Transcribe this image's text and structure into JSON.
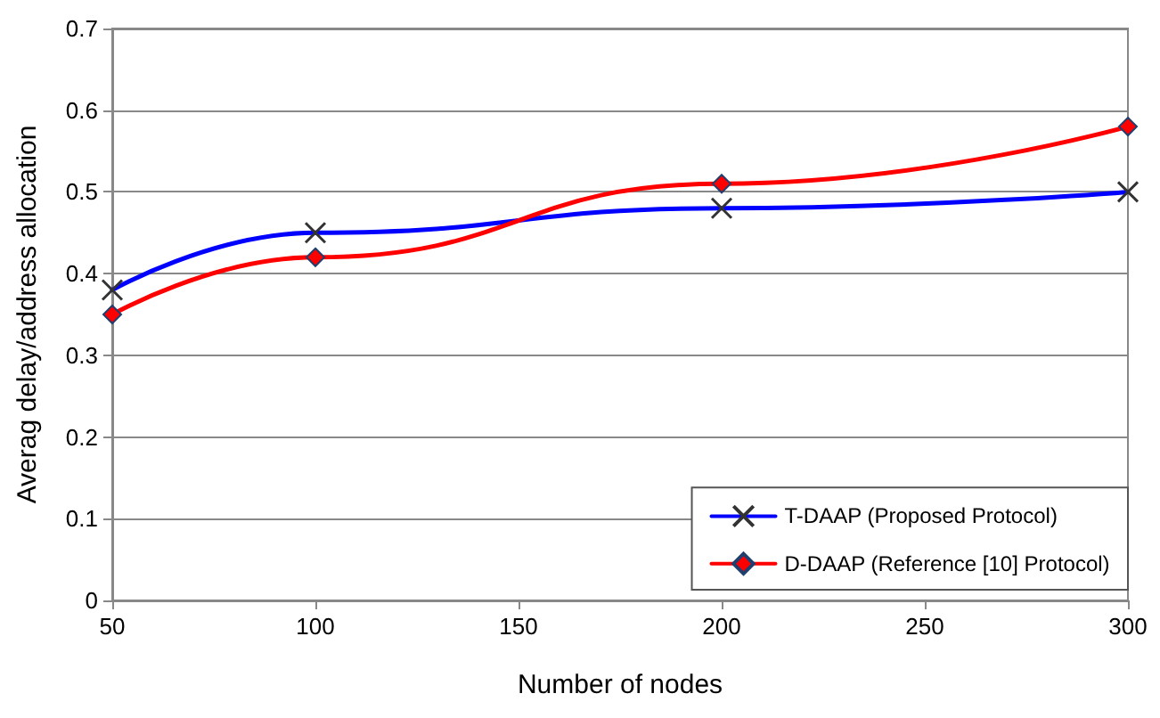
{
  "chart_data": {
    "type": "line",
    "xlabel": "Number of nodes",
    "ylabel": "Averag delay/address allocation",
    "x": [
      50,
      100,
      200,
      300
    ],
    "series": [
      {
        "name": "T-DAAP (Proposed Protocol)",
        "color": "#0000ff",
        "marker": "cross",
        "values": [
          0.38,
          0.45,
          0.48,
          0.5
        ]
      },
      {
        "name": "D-DAAP (Reference [10] Protocol)",
        "color": "#ff0000",
        "marker": "diamond",
        "values": [
          0.35,
          0.42,
          0.51,
          0.58
        ]
      }
    ],
    "xlim": [
      50,
      300
    ],
    "xticks": [
      50,
      100,
      150,
      200,
      250,
      300
    ],
    "ylim": [
      0,
      0.7
    ],
    "yticks": [
      0,
      0.1,
      0.2,
      0.3,
      0.4,
      0.5,
      0.6,
      0.7
    ],
    "grid": "y",
    "legend": "bottom right",
    "line_style": "solid"
  }
}
